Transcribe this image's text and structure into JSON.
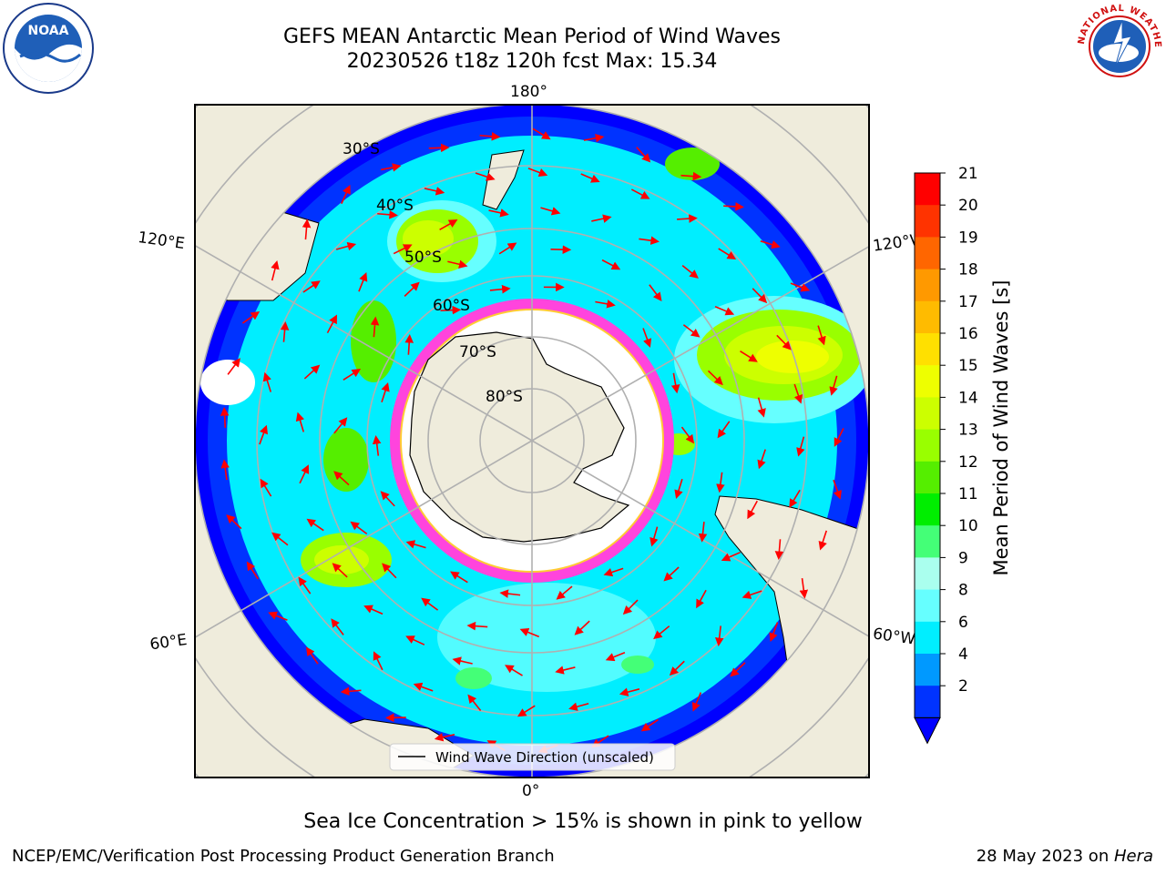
{
  "title": {
    "line1": "GEFS MEAN Antarctic Mean Period of Wind Waves",
    "line2": "20230526 t18z 120h fcst   Max: 15.34"
  },
  "logos": {
    "left": {
      "text": "NOAA",
      "ring": "NATIONAL OCEANIC AND ATMOSPHERIC ADMINISTRATION · U.S. DEPARTMENT OF COMMERCE"
    },
    "right": {
      "ring": "NATIONAL WEATHER SERVICE"
    }
  },
  "map": {
    "lon_labels": {
      "top": "180°",
      "bottom": "0°",
      "upper_left": "120°E",
      "upper_right": "120°W",
      "lower_left": "60°E",
      "lower_right": "60°W"
    },
    "lat_labels": [
      "30°S",
      "40°S",
      "50°S",
      "60°S",
      "70°S",
      "80°S"
    ],
    "legend": "Wind Wave Direction (unscaled)"
  },
  "colorbar": {
    "label": "Mean Period of Wind Waves [s]",
    "ticks": [
      "21",
      "20",
      "19",
      "18",
      "17",
      "16",
      "15",
      "14",
      "13",
      "12",
      "11",
      "10",
      "9",
      "8",
      "6",
      "4",
      "2"
    ],
    "colors": [
      "#ff0000",
      "#ff3300",
      "#ff6600",
      "#ff9900",
      "#ffbb00",
      "#ffe000",
      "#eeff00",
      "#ccff00",
      "#99ff00",
      "#55ee00",
      "#00ee00",
      "#44ff77",
      "#aaffee",
      "#66ffff",
      "#00eeff",
      "#0099ff",
      "#0033ff"
    ],
    "extend_color": "#0000ff"
  },
  "caption": "Sea Ice Concentration > 15% is shown in pink to yellow",
  "footer": {
    "left": "NCEP/EMC/Verification Post Processing Product Generation Branch",
    "right_prefix": "28 May 2023 on ",
    "right_italic": "Hera"
  }
}
